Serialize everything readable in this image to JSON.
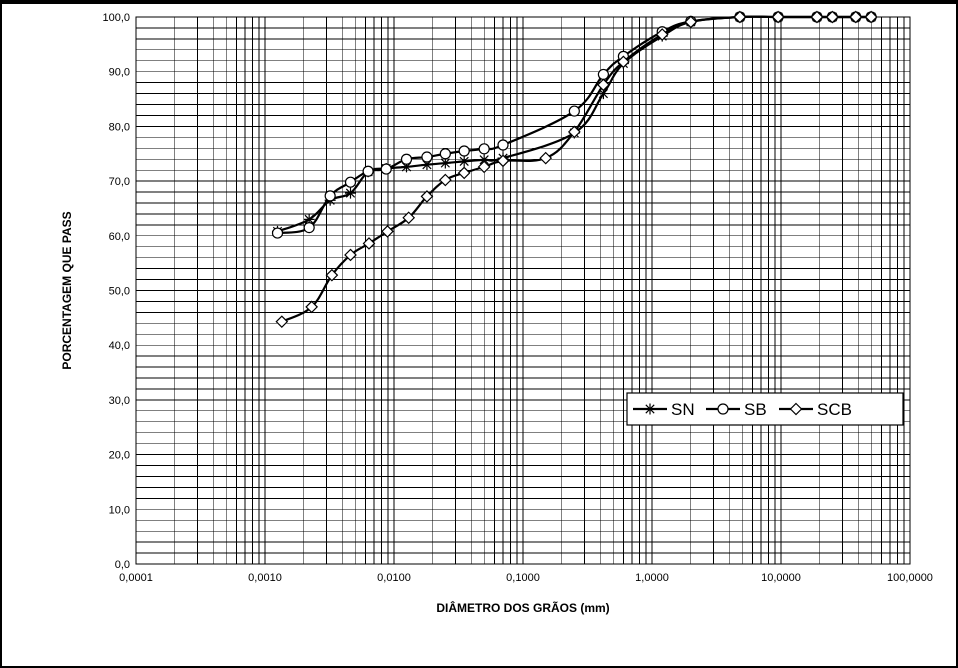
{
  "chart_data": {
    "type": "line",
    "xlabel": "DIÂMETRO DOS GRÃOS (mm)",
    "ylabel": "PORCENTAGEM QUE PASS",
    "x_scale": "log",
    "xlim": [
      0.0001,
      100
    ],
    "ylim": [
      0,
      100
    ],
    "grid": true,
    "legend_position": "right",
    "x_tick_labels": [
      "0,0001",
      "0,0010",
      "0,0100",
      "0,1000",
      "1,0000",
      "10,0000",
      "100,0000"
    ],
    "y_tick_labels": [
      "0,0",
      "10,0",
      "20,0",
      "30,0",
      "40,0",
      "50,0",
      "60,0",
      "70,0",
      "80,0",
      "90,0",
      "100,0"
    ],
    "series": [
      {
        "name": "SN",
        "marker": "asterisk",
        "x": [
          0.00125,
          0.0022,
          0.0032,
          0.0046,
          0.0063,
          0.0087,
          0.0125,
          0.018,
          0.025,
          0.035,
          0.05,
          0.07,
          0.25,
          0.42,
          0.6,
          1.2,
          2.0,
          4.8,
          9.5,
          19,
          25,
          38,
          50
        ],
        "y": [
          60.8,
          63.0,
          66.5,
          67.8,
          71.7,
          72.3,
          72.6,
          73.0,
          73.3,
          73.6,
          73.9,
          74.2,
          78.8,
          86.0,
          91.5,
          96.5,
          99.1,
          100,
          100,
          100,
          100,
          100,
          100
        ]
      },
      {
        "name": "SB",
        "marker": "circle",
        "x": [
          0.00125,
          0.0022,
          0.0032,
          0.0046,
          0.0063,
          0.0087,
          0.0125,
          0.018,
          0.025,
          0.035,
          0.05,
          0.07,
          0.25,
          0.42,
          0.6,
          1.2,
          2.0,
          4.8,
          9.5,
          19,
          25,
          38,
          50
        ],
        "y": [
          60.5,
          61.5,
          67.3,
          69.8,
          71.8,
          72.2,
          74.0,
          74.4,
          75.0,
          75.5,
          75.9,
          76.6,
          82.8,
          89.5,
          92.8,
          97.3,
          99.2,
          100,
          100,
          100,
          100,
          100,
          100
        ]
      },
      {
        "name": "SCB",
        "marker": "diamond",
        "x": [
          0.00135,
          0.0023,
          0.0033,
          0.0046,
          0.0064,
          0.0089,
          0.013,
          0.018,
          0.025,
          0.035,
          0.05,
          0.07,
          0.15,
          0.25,
          0.42,
          0.6,
          1.2,
          2.0,
          4.8,
          9.5,
          19,
          25,
          38,
          50
        ],
        "y": [
          44.3,
          47.0,
          52.8,
          56.5,
          58.6,
          60.8,
          63.3,
          67.2,
          70.2,
          71.5,
          72.6,
          73.7,
          74.2,
          79.0,
          87.6,
          91.8,
          96.8,
          99.1,
          100,
          100,
          100,
          100,
          100,
          100
        ]
      }
    ]
  }
}
